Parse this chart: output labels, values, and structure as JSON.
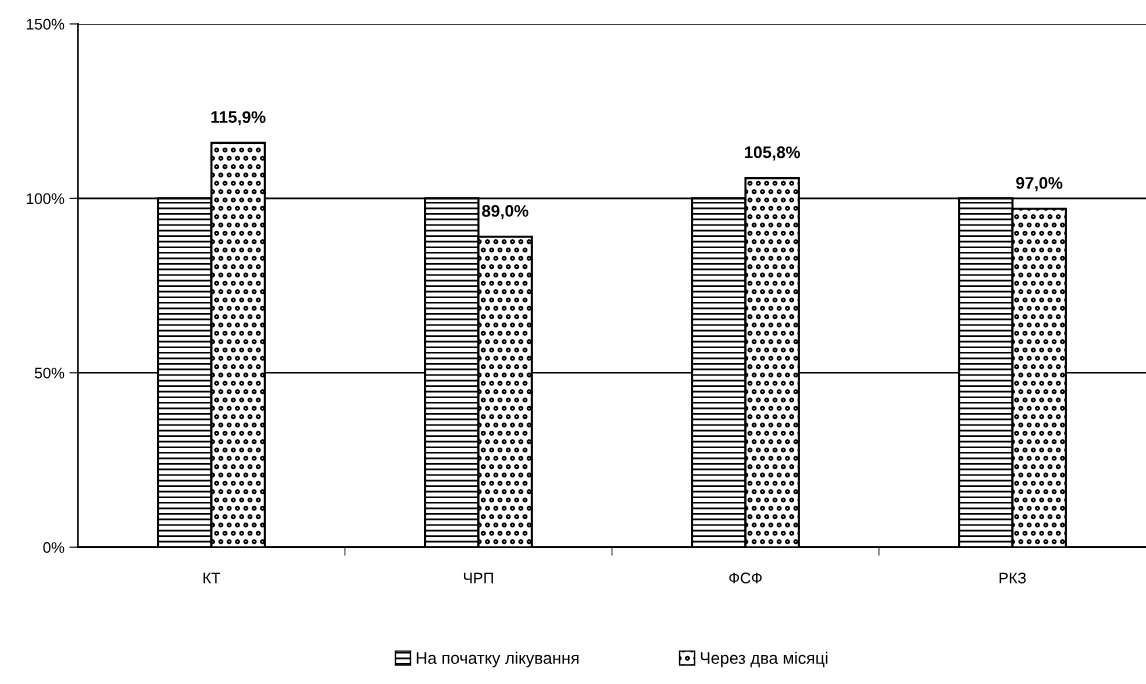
{
  "chart_data": {
    "type": "bar",
    "categories": [
      "КТ",
      "ЧРП",
      "ФСФ",
      "РКЗ"
    ],
    "series": [
      {
        "name": "На початку лікування",
        "color": "#000000",
        "values": [
          100,
          100,
          100,
          100
        ]
      },
      {
        "name": "Через два місяці",
        "color": "#000000",
        "values": [
          115.9,
          89.0,
          105.8,
          97.0
        ],
        "value_labels": [
          "115,9%",
          "89,0%",
          "105,8%",
          "97,0%"
        ]
      }
    ],
    "ylim": [
      0,
      150
    ],
    "yticks": [
      {
        "value": 0,
        "label": "0%"
      },
      {
        "value": 50,
        "label": "50%"
      },
      {
        "value": 100,
        "label": "100%"
      },
      {
        "value": 150,
        "label": "150%"
      }
    ],
    "grid": "y",
    "legend": "bottom"
  }
}
